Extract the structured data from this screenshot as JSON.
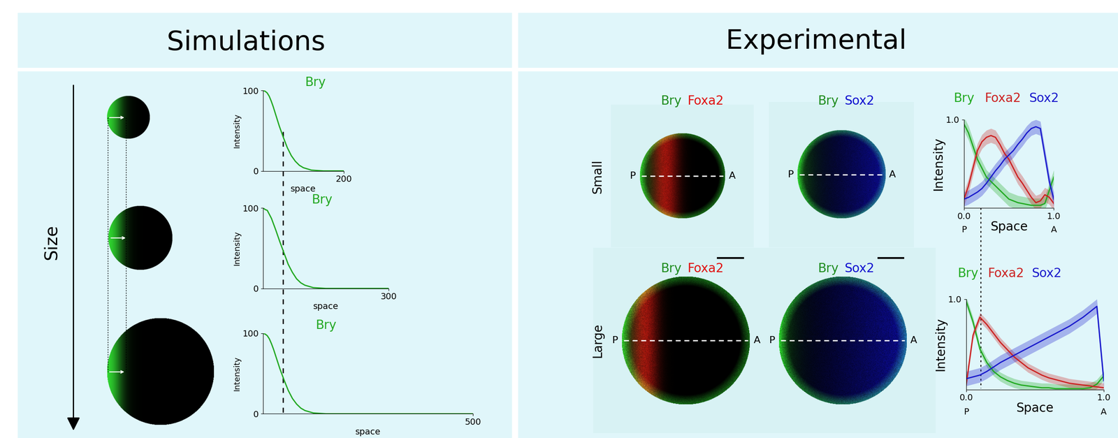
{
  "headers": {
    "left": "Simulations",
    "right": "Experimental"
  },
  "size_label": "Size",
  "images": {
    "rows": [
      "Small",
      "Large"
    ],
    "columns": [
      [
        "Bry",
        "Foxa2"
      ],
      [
        "Bry",
        "Sox2"
      ]
    ],
    "channel_colors": {
      "Bry": "#1e8c1e",
      "Foxa2": "#e01010",
      "Sox2": "#1010d0"
    },
    "posterior": "P",
    "anterior": "A"
  },
  "chart_data": [
    {
      "type": "line",
      "title": "Bry",
      "x_label": "space",
      "y_label": "Intensity",
      "xlim": [
        0,
        200
      ],
      "ylim": [
        0,
        100
      ],
      "xticks": [
        200
      ],
      "yticks": [
        0,
        100
      ],
      "series": [
        {
          "color": "#22a822",
          "x": [
            0,
            5,
            10,
            15,
            20,
            25,
            30,
            40,
            50,
            60,
            70,
            80,
            90,
            100,
            120,
            150,
            200
          ],
          "values": [
            100,
            99,
            97,
            93,
            87,
            80,
            72,
            56,
            42,
            29,
            19,
            12,
            7,
            4,
            1,
            0,
            0
          ]
        }
      ]
    },
    {
      "type": "line",
      "title": "Bry",
      "x_label": "space",
      "y_label": "Intensity",
      "xlim": [
        0,
        300
      ],
      "ylim": [
        0,
        100
      ],
      "xticks": [
        300
      ],
      "yticks": [
        0,
        100
      ],
      "series": [
        {
          "color": "#22a822",
          "x": [
            0,
            5,
            10,
            15,
            20,
            25,
            30,
            40,
            50,
            60,
            70,
            80,
            90,
            100,
            120,
            150,
            200,
            250,
            300
          ],
          "values": [
            100,
            98,
            97,
            92,
            87,
            80,
            73,
            58,
            44,
            30,
            20,
            12,
            7,
            4,
            1,
            0,
            0,
            0,
            0
          ]
        }
      ]
    },
    {
      "type": "line",
      "title": "Bry",
      "x_label": "space",
      "y_label": "Intensity",
      "xlim": [
        0,
        500
      ],
      "ylim": [
        0,
        100
      ],
      "xticks": [
        500
      ],
      "yticks": [
        0,
        100
      ],
      "series": [
        {
          "color": "#22a822",
          "x": [
            0,
            5,
            10,
            15,
            20,
            25,
            30,
            40,
            50,
            60,
            70,
            80,
            90,
            100,
            120,
            150,
            200,
            300,
            400,
            500
          ],
          "values": [
            100,
            99,
            97,
            93,
            87,
            80,
            72,
            56,
            42,
            29,
            19,
            12,
            7,
            4,
            1,
            0,
            0,
            0,
            0,
            0
          ]
        }
      ]
    },
    {
      "type": "line",
      "x_label": "Space",
      "y_label": "Intensity",
      "xlim": [
        0,
        1
      ],
      "ylim": [
        0,
        1
      ],
      "xticks": [
        {
          "value": 0,
          "label": "0.0"
        },
        {
          "value": 1,
          "label": "1.0"
        }
      ],
      "yticks": [
        {
          "value": 1,
          "label": "1.0"
        }
      ],
      "x_end_labels": [
        "P",
        "A"
      ],
      "x": [
        0,
        0.05,
        0.1,
        0.15,
        0.2,
        0.25,
        0.3,
        0.35,
        0.4,
        0.45,
        0.5,
        0.55,
        0.6,
        0.65,
        0.7,
        0.75,
        0.8,
        0.85,
        0.9,
        0.95,
        1.0
      ],
      "series": [
        {
          "name": "Bry",
          "color": "#22aa22",
          "error": 0.08,
          "values": [
            0.95,
            0.85,
            0.7,
            0.55,
            0.45,
            0.35,
            0.3,
            0.25,
            0.2,
            0.15,
            0.1,
            0.08,
            0.06,
            0.05,
            0.04,
            0.03,
            0.03,
            0.03,
            0.05,
            0.2,
            0.35
          ]
        },
        {
          "name": "Foxa2",
          "color": "#cc2222",
          "error": 0.08,
          "values": [
            0.1,
            0.25,
            0.45,
            0.65,
            0.75,
            0.8,
            0.82,
            0.8,
            0.72,
            0.62,
            0.55,
            0.45,
            0.35,
            0.28,
            0.2,
            0.12,
            0.06,
            0.08,
            0.15,
            0.12,
            0.05
          ]
        },
        {
          "name": "Sox2",
          "color": "#1a1acc",
          "error": 0.08,
          "values": [
            0.1,
            0.12,
            0.15,
            0.18,
            0.22,
            0.28,
            0.35,
            0.42,
            0.48,
            0.55,
            0.6,
            0.65,
            0.72,
            0.78,
            0.85,
            0.9,
            0.92,
            0.9,
            0.6,
            0.3,
            0.1
          ]
        }
      ]
    },
    {
      "type": "line",
      "x_label": "Space",
      "y_label": "Intensity",
      "xlim": [
        0,
        1
      ],
      "ylim": [
        0,
        1
      ],
      "xticks": [
        {
          "value": 0,
          "label": "0.0"
        },
        {
          "value": 1,
          "label": "1.0"
        }
      ],
      "yticks": [
        {
          "value": 1,
          "label": "1.0"
        }
      ],
      "x_end_labels": [
        "P",
        "A"
      ],
      "x": [
        0,
        0.05,
        0.1,
        0.15,
        0.2,
        0.25,
        0.3,
        0.35,
        0.4,
        0.45,
        0.5,
        0.55,
        0.6,
        0.65,
        0.7,
        0.75,
        0.8,
        0.85,
        0.9,
        0.95,
        1.0
      ],
      "series": [
        {
          "name": "Bry",
          "color": "#22aa22",
          "error": 0.05,
          "values": [
            0.98,
            0.75,
            0.45,
            0.3,
            0.2,
            0.14,
            0.1,
            0.07,
            0.05,
            0.04,
            0.03,
            0.02,
            0.02,
            0.01,
            0.01,
            0.01,
            0.01,
            0.01,
            0.02,
            0.06,
            0.15
          ]
        },
        {
          "name": "Foxa2",
          "color": "#cc2222",
          "error": 0.05,
          "values": [
            0.05,
            0.6,
            0.8,
            0.72,
            0.62,
            0.52,
            0.44,
            0.36,
            0.3,
            0.24,
            0.2,
            0.16,
            0.13,
            0.11,
            0.09,
            0.07,
            0.06,
            0.05,
            0.04,
            0.03,
            0.02
          ]
        },
        {
          "name": "Sox2",
          "color": "#1a1acc",
          "error": 0.08,
          "values": [
            0.12,
            0.14,
            0.16,
            0.2,
            0.25,
            0.3,
            0.34,
            0.38,
            0.42,
            0.46,
            0.5,
            0.54,
            0.58,
            0.62,
            0.66,
            0.7,
            0.75,
            0.8,
            0.86,
            0.92,
            0.1
          ]
        }
      ]
    }
  ]
}
